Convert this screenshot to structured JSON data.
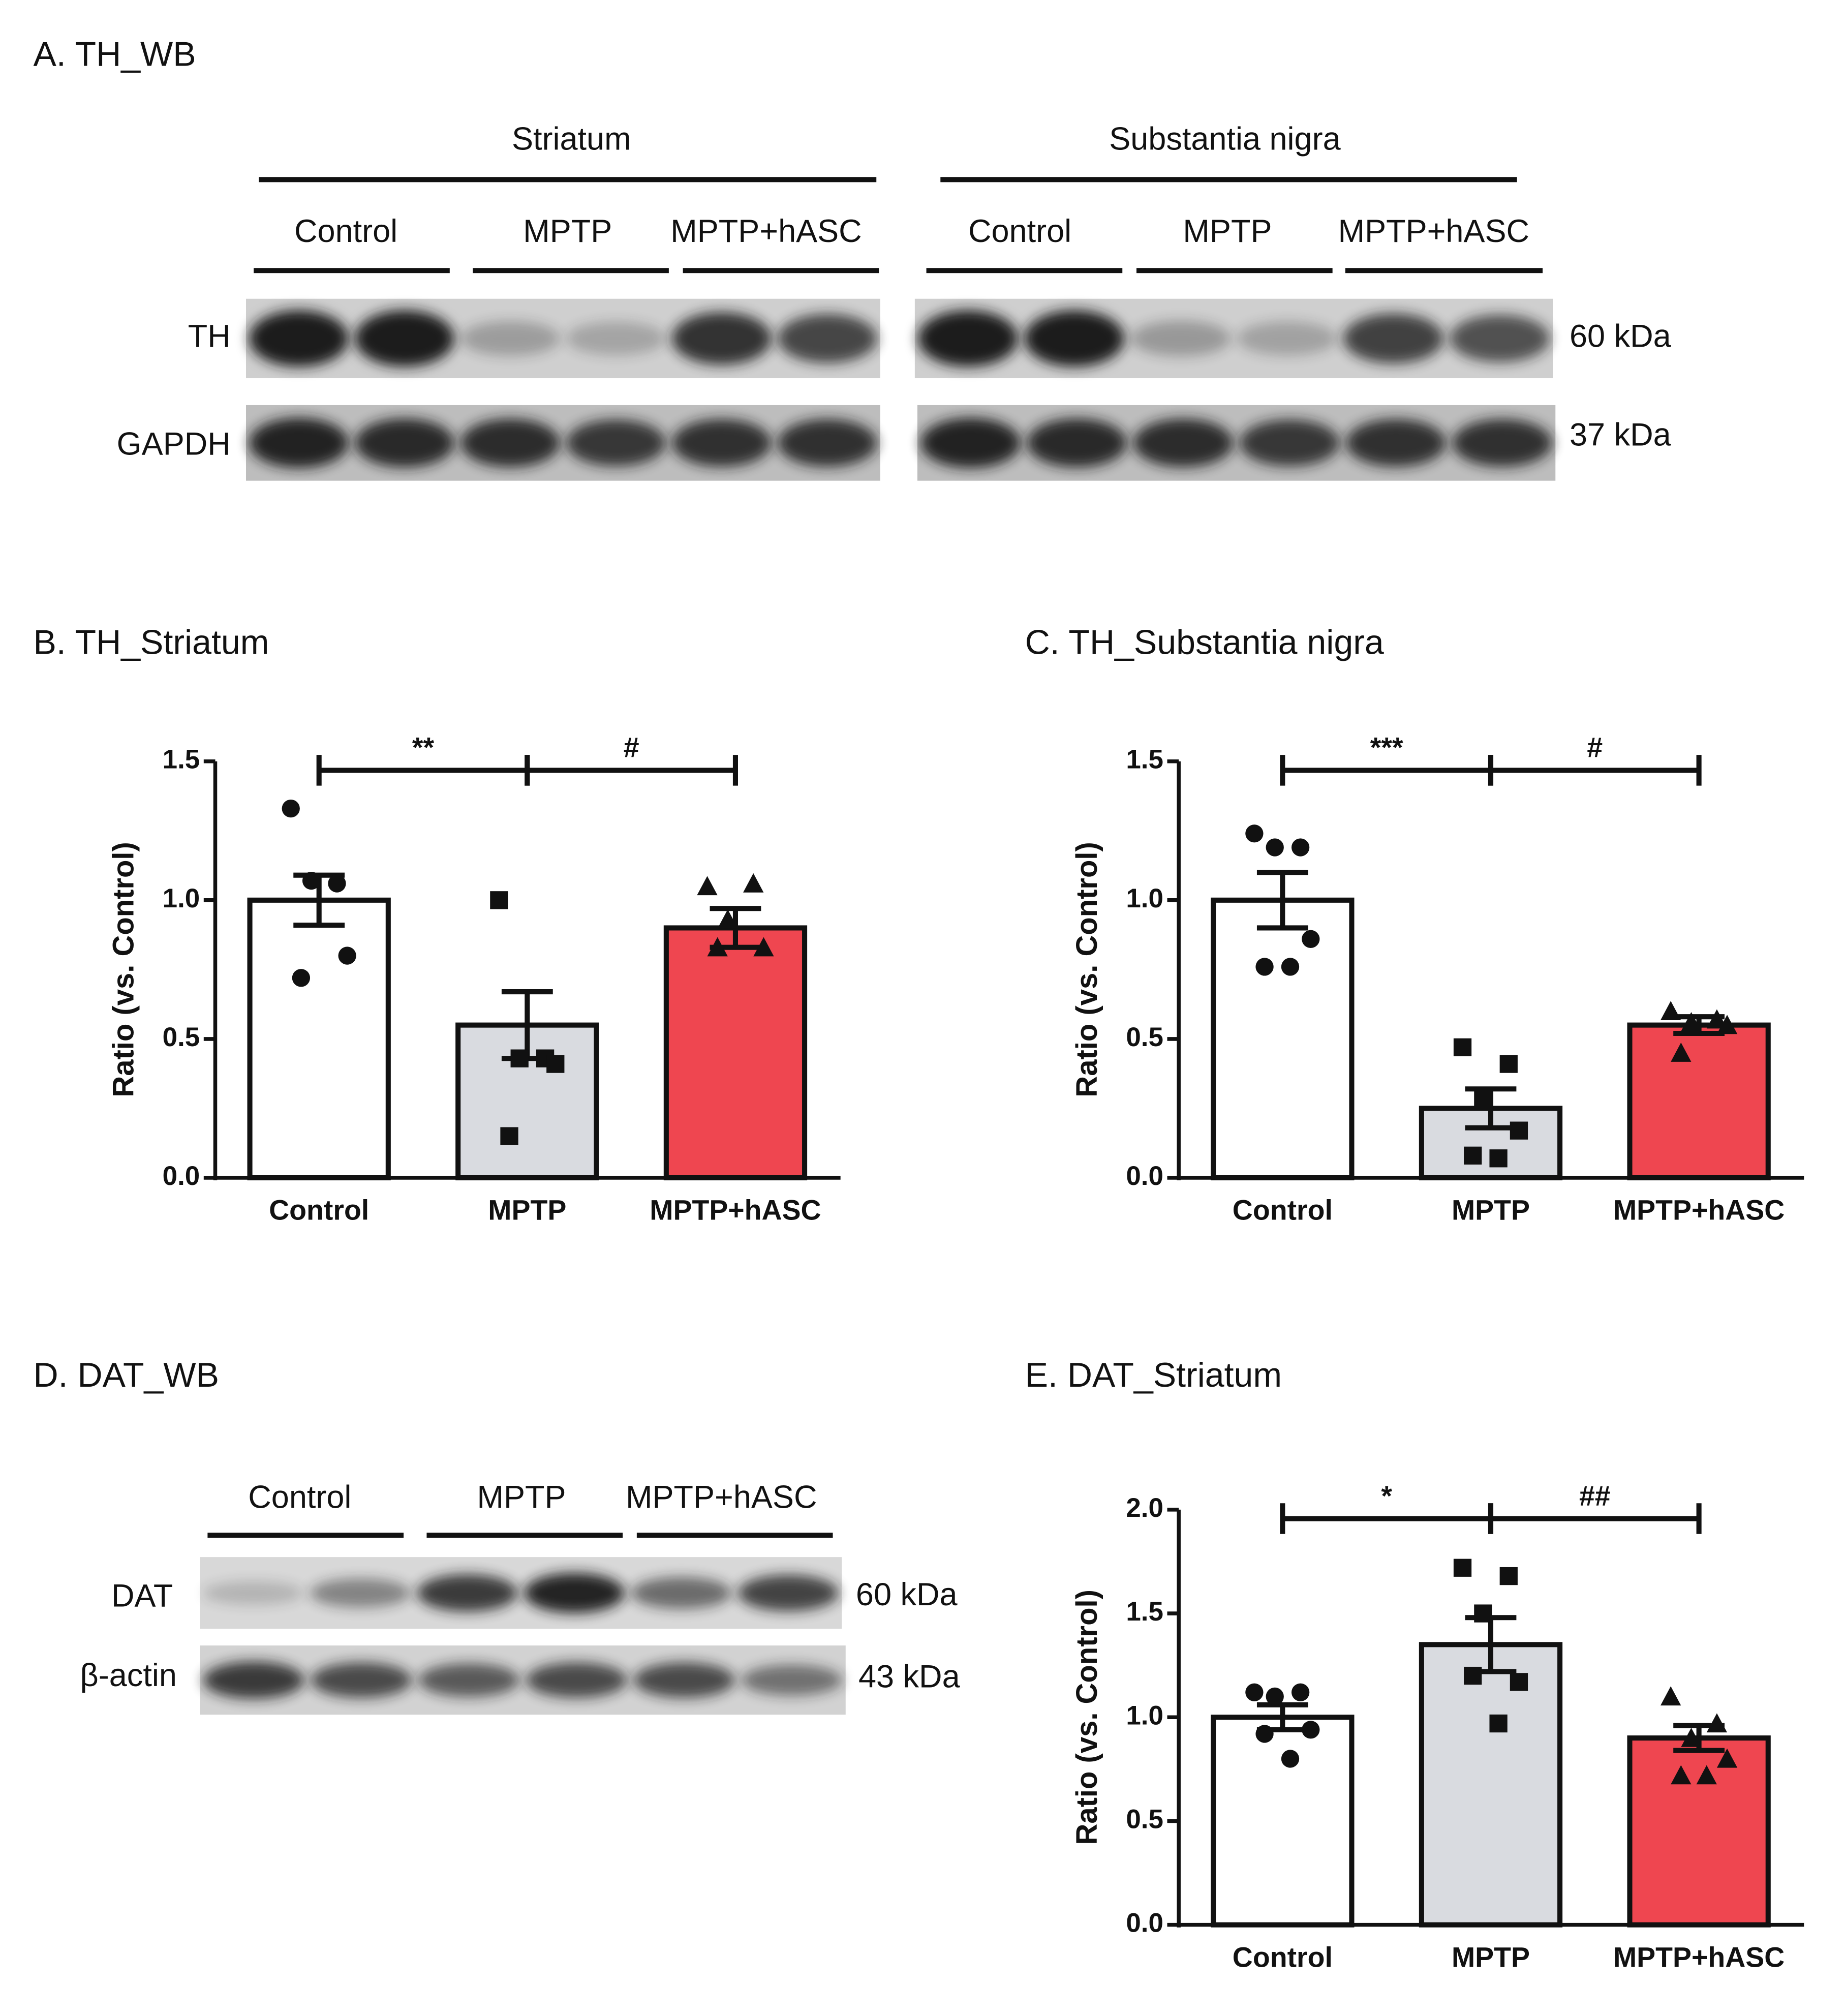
{
  "panel_a": {
    "title": "A. TH_WB",
    "regions": [
      {
        "name": "Striatum",
        "groups": [
          "Control",
          "MPTP",
          "MPTP+hASC"
        ]
      },
      {
        "name": "Substantia nigra",
        "groups": [
          "Control",
          "MPTP",
          "MPTP+hASC"
        ]
      }
    ],
    "rows": [
      {
        "label": "TH",
        "size": "60 kDa"
      },
      {
        "label": "GAPDH",
        "size": "37 kDa"
      }
    ]
  },
  "panel_d": {
    "title": "D. DAT_WB",
    "groups": [
      "Control",
      "MPTP",
      "MPTP+hASC"
    ],
    "rows": [
      {
        "label": "DAT",
        "size": "60 kDa"
      },
      {
        "label": "β-actin",
        "size": "43 kDa"
      }
    ]
  },
  "chart_data": [
    {
      "type": "bar",
      "title": "B. TH_Striatum",
      "y_label": "Ratio (vs. Control)",
      "categories": [
        "Control",
        "MPTP",
        "MPTP+hASC"
      ],
      "colors": [
        "#ffffff",
        "#d9dbe0",
        "#ef4650"
      ],
      "markers": [
        "circle",
        "square",
        "triangle"
      ],
      "values": [
        1.0,
        0.55,
        0.9
      ],
      "errors": [
        0.09,
        0.12,
        0.07
      ],
      "points": [
        [
          1.33,
          1.06,
          1.07,
          0.8,
          0.72
        ],
        [
          1.0,
          0.43,
          0.43,
          0.41,
          0.15
        ],
        [
          1.05,
          1.06,
          0.93,
          0.83,
          0.83
        ]
      ],
      "ylim": [
        0,
        1.5
      ],
      "yticks": [
        {
          "value": 0,
          "label": "0.0"
        },
        0.5,
        {
          "value": 1,
          "label": "1.0"
        },
        1.5
      ],
      "annotations": [
        {
          "label": "**",
          "between": [
            "Control",
            "MPTP"
          ]
        },
        {
          "label": "#",
          "between": [
            "MPTP",
            "MPTP+hASC"
          ]
        }
      ]
    },
    {
      "type": "bar",
      "title": "C. TH_Substantia nigra",
      "y_label": "Ratio (vs. Control)",
      "categories": [
        "Control",
        "MPTP",
        "MPTP+hASC"
      ],
      "colors": [
        "#ffffff",
        "#d9dbe0",
        "#ef4650"
      ],
      "markers": [
        "circle",
        "square",
        "triangle"
      ],
      "values": [
        1.0,
        0.25,
        0.55
      ],
      "errors": [
        0.1,
        0.07,
        0.03
      ],
      "points": [
        [
          1.24,
          1.19,
          1.19,
          0.86,
          0.76,
          0.76
        ],
        [
          0.47,
          0.41,
          0.28,
          0.17,
          0.08,
          0.07
        ],
        [
          0.6,
          0.57,
          0.56,
          0.55,
          0.45
        ]
      ],
      "ylim": [
        0,
        1.5
      ],
      "yticks": [
        {
          "value": 0,
          "label": "0.0"
        },
        0.5,
        {
          "value": 1,
          "label": "1.0"
        },
        1.5
      ],
      "annotations": [
        {
          "label": "***",
          "between": [
            "Control",
            "MPTP"
          ]
        },
        {
          "label": "#",
          "between": [
            "MPTP",
            "MPTP+hASC"
          ]
        }
      ]
    },
    {
      "type": "bar",
      "title": "E. DAT_Striatum",
      "y_label": "Ratio (vs. Control)",
      "categories": [
        "Control",
        "MPTP",
        "MPTP+hASC"
      ],
      "colors": [
        "#ffffff",
        "#d9dbe0",
        "#ef4650"
      ],
      "markers": [
        "circle",
        "square",
        "triangle"
      ],
      "values": [
        1.0,
        1.35,
        0.9
      ],
      "errors": [
        0.06,
        0.13,
        0.06
      ],
      "points": [
        [
          1.12,
          1.12,
          1.1,
          0.94,
          0.92,
          0.8
        ],
        [
          1.72,
          1.68,
          1.5,
          1.17,
          1.2,
          0.97
        ],
        [
          1.1,
          0.97,
          0.9,
          0.8,
          0.72,
          0.72
        ]
      ],
      "ylim": [
        0,
        2
      ],
      "yticks": [
        {
          "value": 0,
          "label": "0.0"
        },
        0.5,
        {
          "value": 1,
          "label": "1.0"
        },
        1.5,
        {
          "value": 2,
          "label": "2.0"
        }
      ],
      "annotations": [
        {
          "label": "*",
          "between": [
            "Control",
            "MPTP"
          ]
        },
        {
          "label": "##",
          "between": [
            "MPTP",
            "MPTP+hASC"
          ]
        }
      ]
    }
  ]
}
